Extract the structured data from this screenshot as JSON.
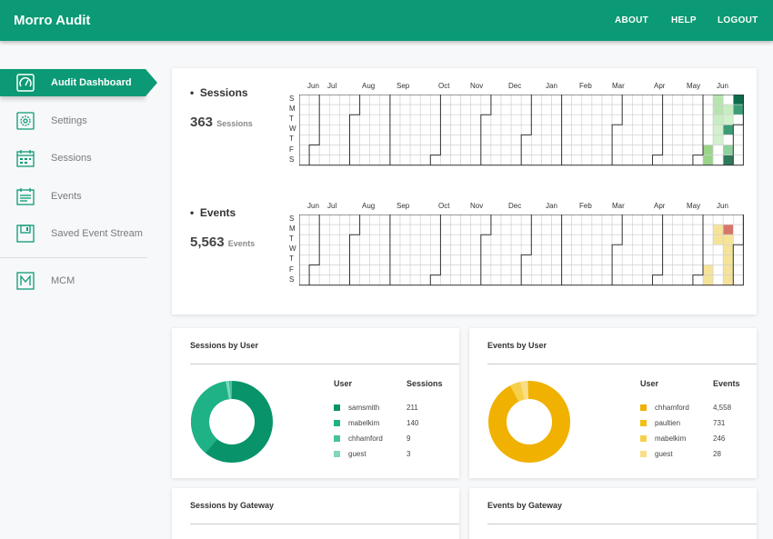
{
  "app": {
    "title": "Morro Audit"
  },
  "topnav": [
    "ABOUT",
    "HELP",
    "LOGOUT"
  ],
  "sidebar": {
    "items": [
      {
        "label": "Audit Dashboard",
        "icon": "gauge-icon",
        "active": true
      },
      {
        "label": "Settings",
        "icon": "gear-icon"
      },
      {
        "label": "Sessions",
        "icon": "calendar-icon"
      },
      {
        "label": "Events",
        "icon": "list-icon"
      },
      {
        "label": "Saved Event Stream",
        "icon": "save-icon"
      },
      {
        "label": "MCM",
        "icon": "m-icon"
      }
    ]
  },
  "heatmap": {
    "months": [
      "Jun",
      "Jul",
      "Aug",
      "Sep",
      "Oct",
      "Nov",
      "Dec",
      "Jan",
      "Feb",
      "Mar",
      "Apr",
      "May",
      "Jun"
    ],
    "days": [
      "S",
      "M",
      "T",
      "W",
      "T",
      "F",
      "S"
    ],
    "sessions": {
      "title": "Sessions",
      "count": "363",
      "unit": "Sessions"
    },
    "events": {
      "title": "Events",
      "count": "5,563",
      "unit": "Events"
    }
  },
  "colors": {
    "accent": "#0b9a75",
    "sessions_donut": [
      "#08936a",
      "#1fb287",
      "#45c49c",
      "#7fd8b8"
    ],
    "events_donut": [
      "#f0b100",
      "#f3c016",
      "#f6d04a",
      "#f9de86"
    ]
  },
  "sessions_by_user": {
    "title": "Sessions by User",
    "col_user": "User",
    "col_value": "Sessions",
    "rows": [
      {
        "user": "samsmith",
        "value": "211"
      },
      {
        "user": "mabelkim",
        "value": "140"
      },
      {
        "user": "chhamford",
        "value": "9"
      },
      {
        "user": "guest",
        "value": "3"
      }
    ]
  },
  "events_by_user": {
    "title": "Events by User",
    "col_user": "User",
    "col_value": "Events",
    "rows": [
      {
        "user": "chhamford",
        "value": "4,558"
      },
      {
        "user": "paultien",
        "value": "731"
      },
      {
        "user": "mabelkim",
        "value": "246"
      },
      {
        "user": "guest",
        "value": "28"
      }
    ]
  },
  "sessions_by_gateway": {
    "title": "Sessions by Gateway"
  },
  "events_by_gateway": {
    "title": "Events by Gateway"
  }
}
